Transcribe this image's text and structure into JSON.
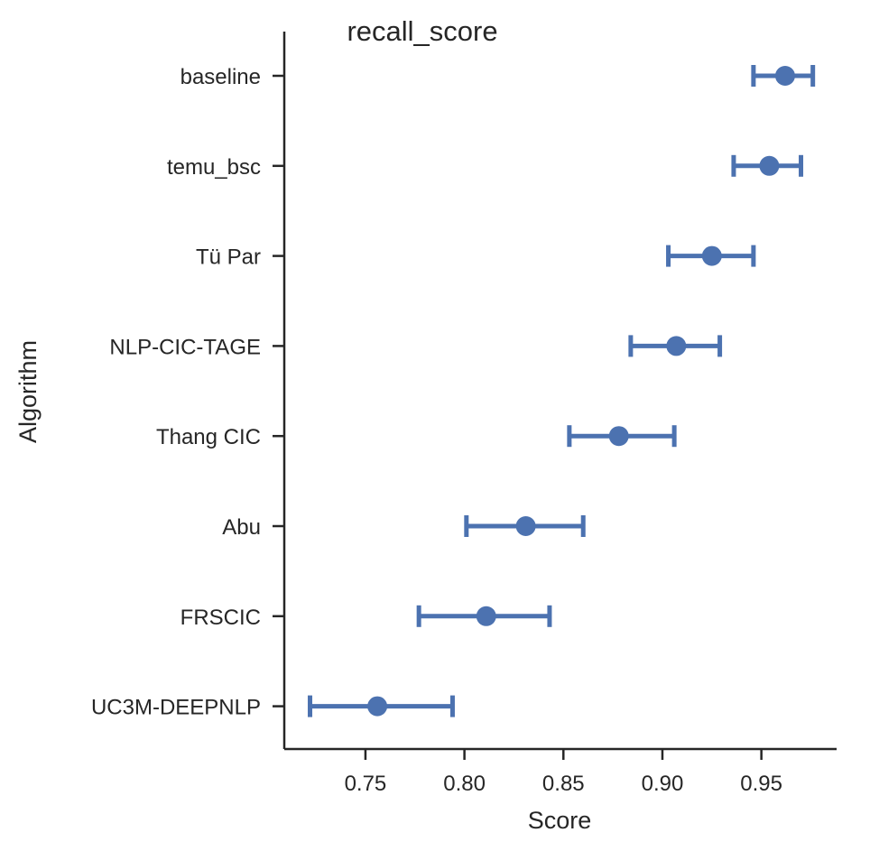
{
  "chart_data": {
    "type": "pointplot",
    "title": "recall_score",
    "xlabel": "Score",
    "ylabel": "Algorithm",
    "xlim": [
      0.709,
      0.988
    ],
    "xticks": [
      0.75,
      0.8,
      0.85,
      0.9,
      0.95
    ],
    "xtick_labels": [
      "0.75",
      "0.80",
      "0.85",
      "0.90",
      "0.95"
    ],
    "grid": false,
    "color": "#4c72b0",
    "categories": [
      "baseline",
      "temu_bsc",
      "Tü Par",
      "NLP-CIC-TAGE",
      "Thang CIC",
      "Abu",
      "FRSCIC",
      "UC3M-DEEPNLP"
    ],
    "values": [
      0.962,
      0.954,
      0.925,
      0.907,
      0.878,
      0.831,
      0.811,
      0.756
    ],
    "ci_low": [
      0.946,
      0.936,
      0.903,
      0.884,
      0.853,
      0.801,
      0.777,
      0.722
    ],
    "ci_high": [
      0.976,
      0.97,
      0.946,
      0.929,
      0.906,
      0.86,
      0.843,
      0.794
    ]
  }
}
